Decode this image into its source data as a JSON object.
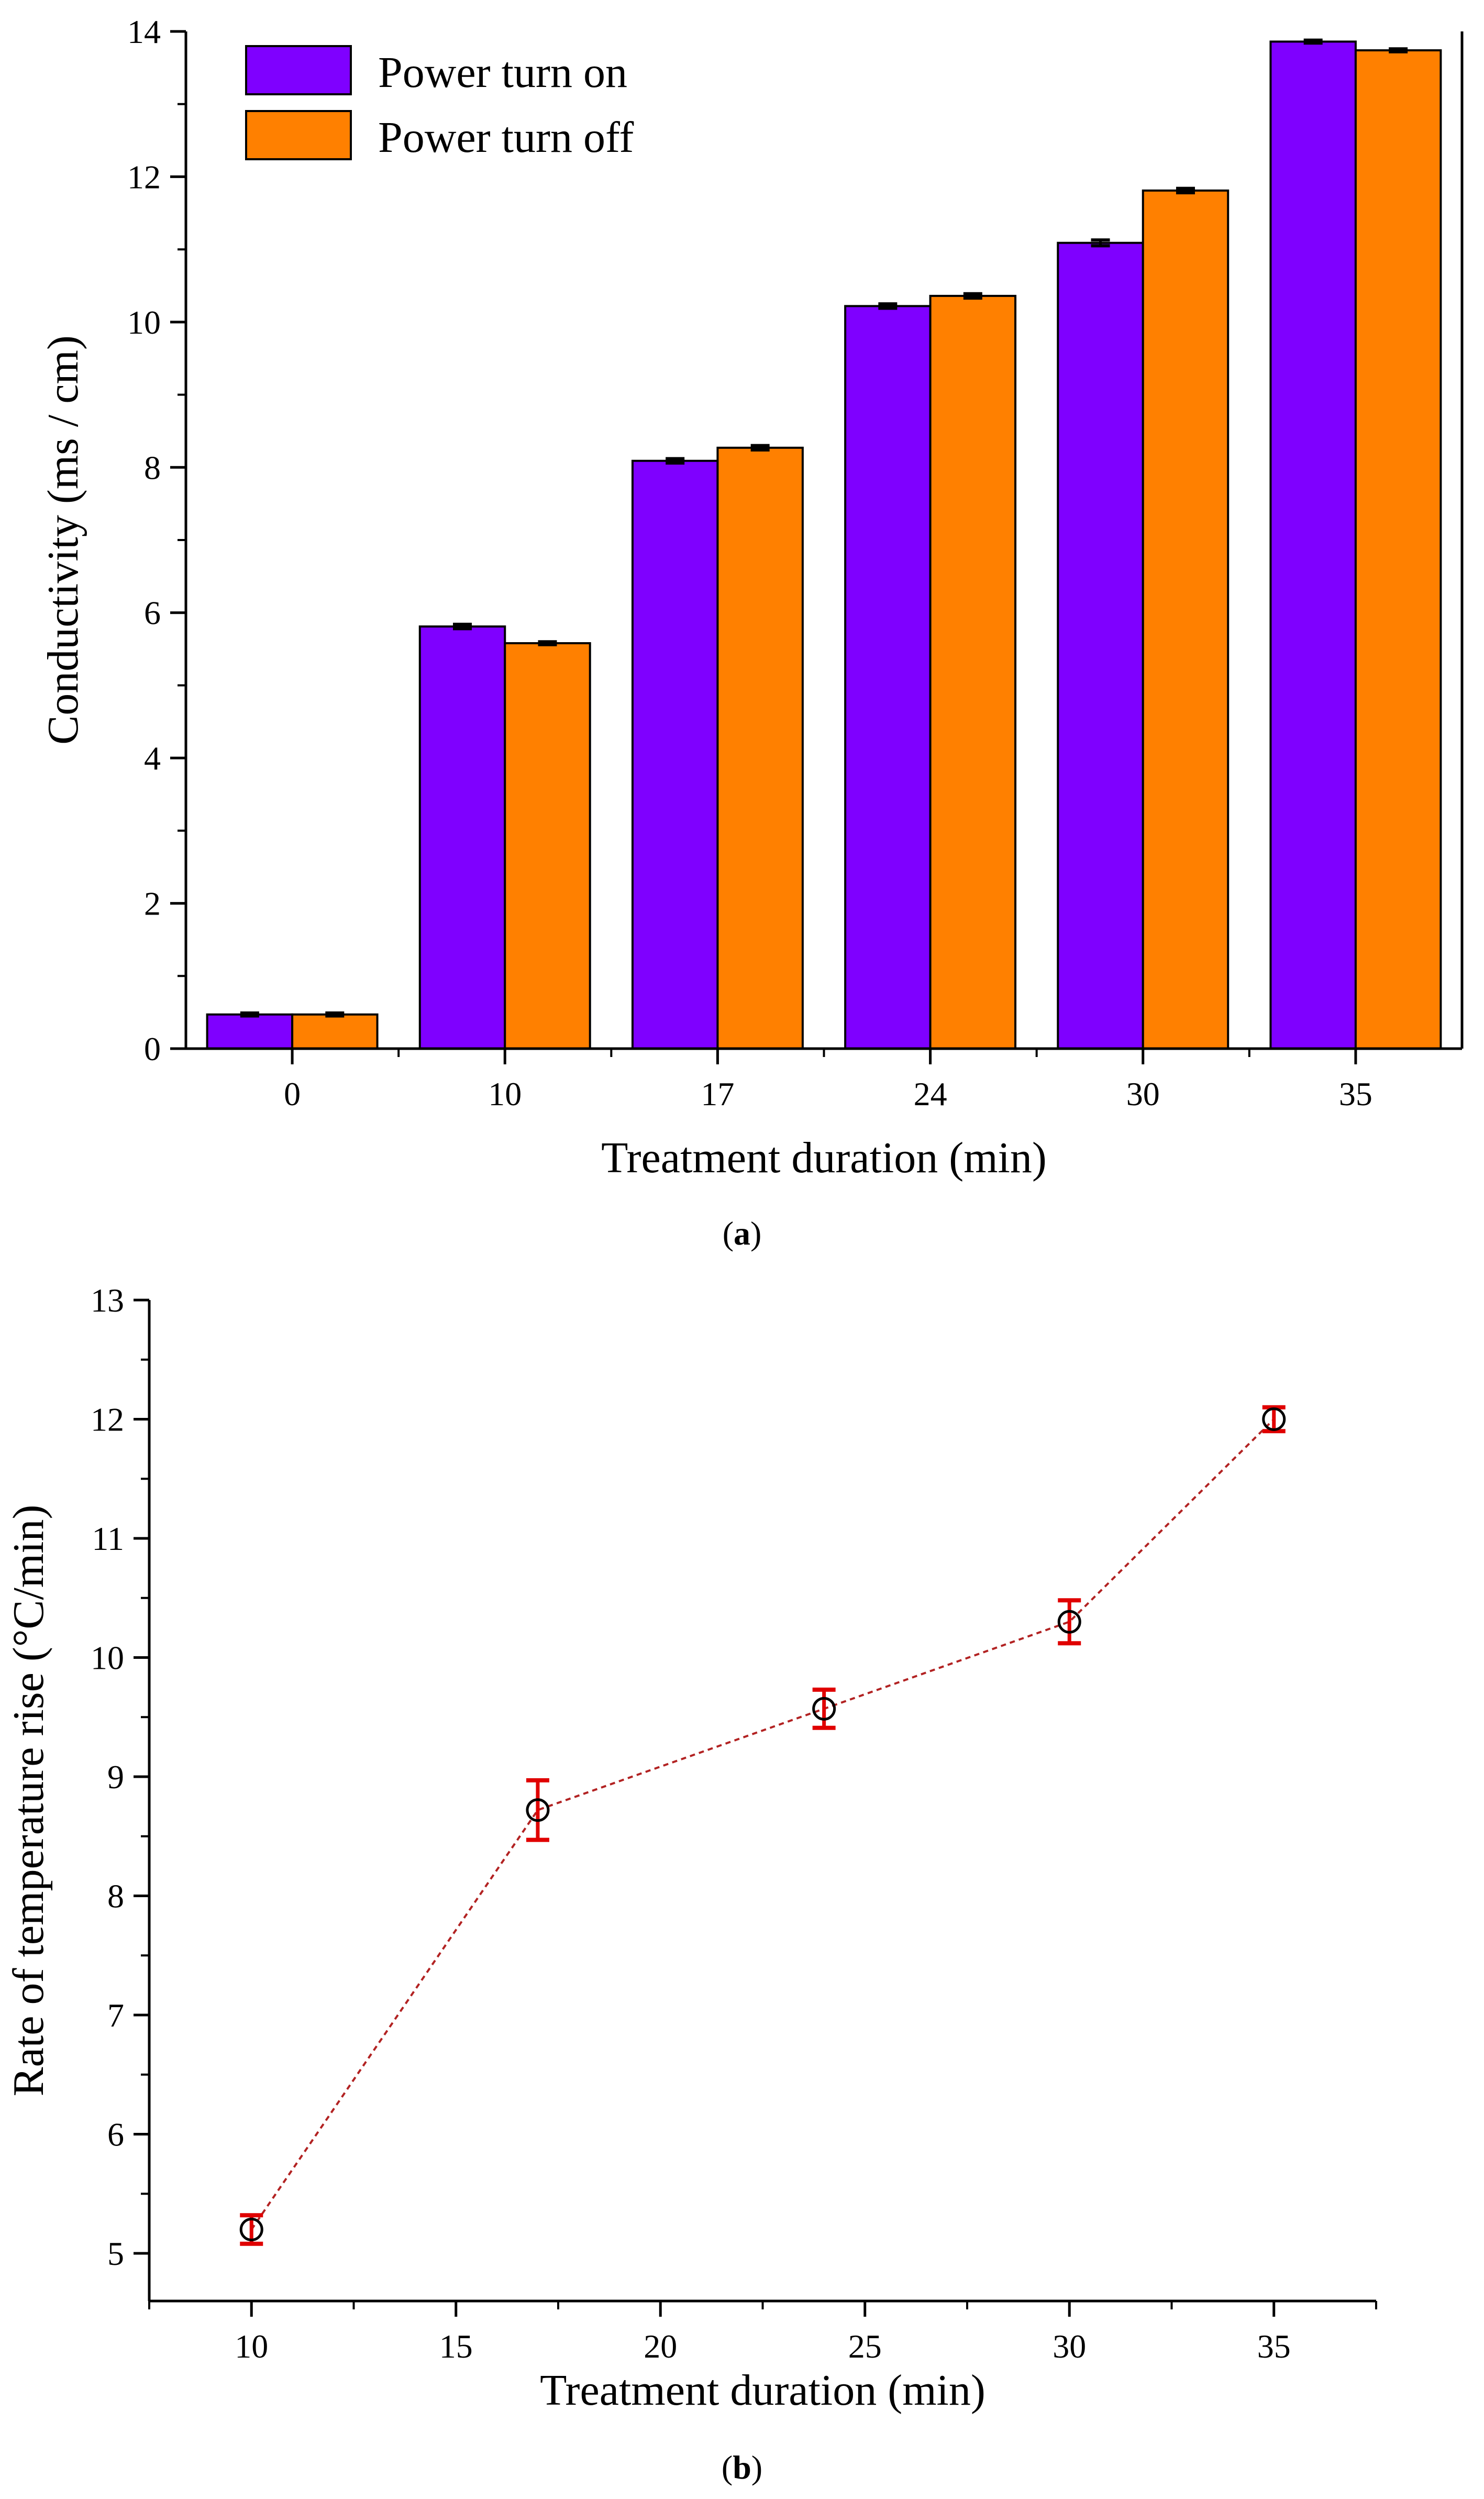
{
  "chart_data": [
    {
      "panel": "a",
      "type": "bar",
      "caption_label": "a",
      "xlabel": "Treatment duration (min)",
      "ylabel": "Conductivity (ms / cm)",
      "categories": [
        "0",
        "10",
        "17",
        "24",
        "30",
        "35"
      ],
      "ylim": [
        0,
        14
      ],
      "yticks": [
        0,
        2,
        4,
        6,
        8,
        10,
        12,
        14
      ],
      "legend_position": "top-left",
      "series": [
        {
          "name": "Power turn on",
          "color": "#7f00ff",
          "values": [
            0.47,
            5.81,
            8.09,
            10.22,
            11.09,
            13.86
          ],
          "errors": [
            0.02,
            0.03,
            0.03,
            0.03,
            0.04,
            0.02
          ]
        },
        {
          "name": "Power turn off",
          "color": "#ff8000",
          "values": [
            0.47,
            5.58,
            8.27,
            10.36,
            11.81,
            13.74
          ],
          "errors": [
            0.02,
            0.02,
            0.03,
            0.03,
            0.03,
            0.02
          ]
        }
      ]
    },
    {
      "panel": "b",
      "type": "scatter",
      "caption_label": "b",
      "xlabel": "Treatment duration (min)",
      "ylabel": "Rate of temperature rise (°C/min)",
      "x": [
        10,
        17,
        24,
        30,
        35
      ],
      "y": [
        5.2,
        8.72,
        9.57,
        10.3,
        12.0
      ],
      "errors": [
        0.12,
        0.25,
        0.16,
        0.18,
        0.1
      ],
      "xlim": [
        7.5,
        37.5
      ],
      "ylim": [
        4.6,
        13
      ],
      "xticks": [
        10,
        15,
        20,
        25,
        30,
        35
      ],
      "yticks": [
        5,
        6,
        7,
        8,
        9,
        10,
        11,
        12,
        13
      ],
      "line_color": "#b22222",
      "errorbar_color": "#e00000",
      "marker": "open-circle"
    }
  ]
}
